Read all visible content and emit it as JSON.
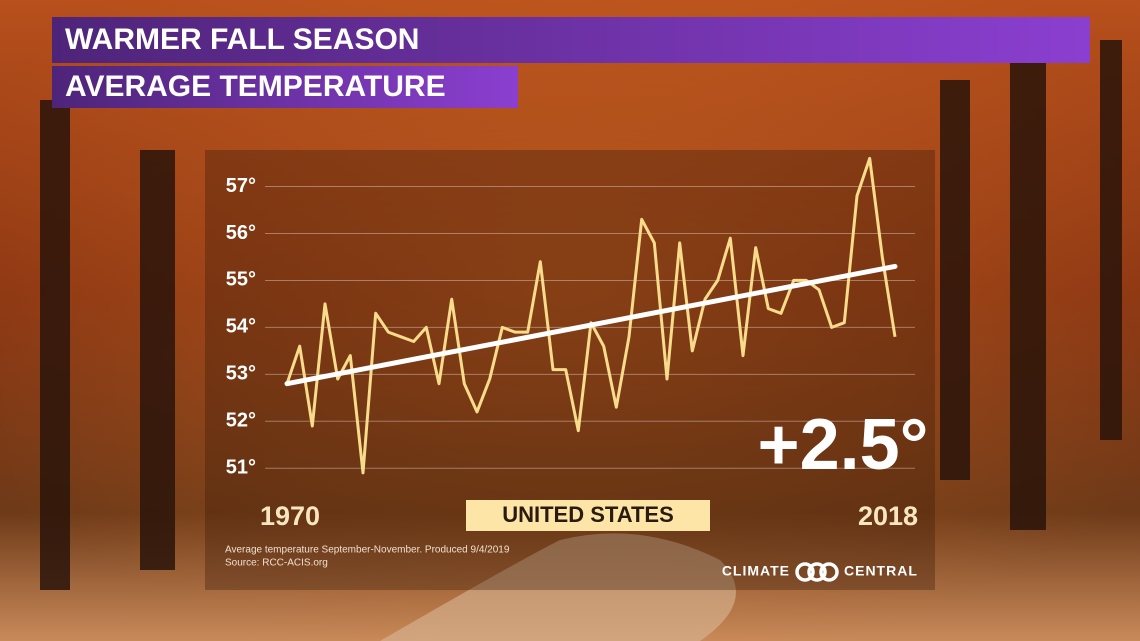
{
  "chart_data": {
    "type": "line",
    "title": "WARMER FALL SEASON",
    "subtitle": "AVERAGE TEMPERATURE",
    "x": [
      1970,
      1971,
      1972,
      1973,
      1974,
      1975,
      1976,
      1977,
      1978,
      1979,
      1980,
      1981,
      1982,
      1983,
      1984,
      1985,
      1986,
      1987,
      1988,
      1989,
      1990,
      1991,
      1992,
      1993,
      1994,
      1995,
      1996,
      1997,
      1998,
      1999,
      2000,
      2001,
      2002,
      2003,
      2004,
      2005,
      2006,
      2007,
      2008,
      2009,
      2010,
      2011,
      2012,
      2013,
      2014,
      2015,
      2016,
      2017,
      2018
    ],
    "values": [
      52.8,
      53.6,
      51.9,
      54.5,
      52.9,
      53.4,
      50.9,
      54.3,
      53.9,
      53.8,
      53.7,
      54.0,
      52.8,
      54.6,
      52.8,
      52.2,
      52.9,
      54.0,
      53.9,
      53.9,
      55.4,
      53.1,
      53.1,
      51.8,
      54.1,
      53.6,
      52.3,
      53.8,
      56.3,
      55.8,
      52.9,
      55.8,
      53.5,
      54.6,
      55.0,
      55.9,
      53.4,
      55.7,
      54.4,
      54.3,
      55.0,
      55.0,
      54.8,
      54.0,
      54.1,
      56.8,
      57.6,
      55.5,
      53.8
    ],
    "color": "#f8dc8c",
    "trend": {
      "x": [
        1970,
        2018
      ],
      "values": [
        52.8,
        55.3
      ],
      "color": "#ffffff"
    },
    "xlim": [
      1970,
      2018
    ],
    "xticks": [
      1970,
      2018
    ],
    "ylim": [
      50.6,
      57.8
    ],
    "yticks": [
      {
        "value": 51,
        "label": "51°"
      },
      {
        "value": 52,
        "label": "52°"
      },
      {
        "value": 53,
        "label": "53°"
      },
      {
        "value": 54,
        "label": "54°"
      },
      {
        "value": 55,
        "label": "55°"
      },
      {
        "value": 56,
        "label": "56°"
      },
      {
        "value": 57,
        "label": "57°"
      }
    ],
    "grid": true,
    "annotation": "+2.5°",
    "region": "UNITED STATES",
    "note": "Average temperature September-November. Produced 9/4/2019",
    "source": "Source: RCC-ACIS.org",
    "logo": {
      "left": "CLIMATE",
      "right": "CENTRAL"
    }
  }
}
